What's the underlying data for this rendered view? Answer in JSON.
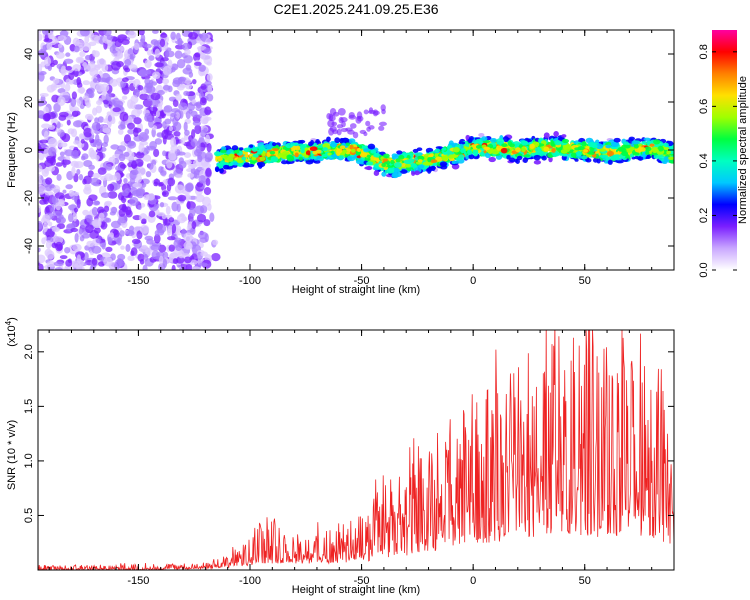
{
  "title": "C2E1.2025.241.09.25.E36",
  "chart_data": [
    {
      "type": "heatmap",
      "xlabel": "Height of straight line (km)",
      "ylabel": "Frequency (Hz)",
      "xlim": [
        -195,
        90
      ],
      "ylim": [
        -50,
        50
      ],
      "xticks": [
        -150,
        -100,
        -50,
        0,
        50
      ],
      "xtick_labels": [
        "-150",
        "-100",
        "-50",
        "0",
        "50"
      ],
      "yticks": [
        -40,
        -20,
        0,
        20,
        40
      ],
      "ytick_labels": [
        "-40",
        "-20",
        "0",
        "20",
        "40"
      ],
      "noise_region_x": [
        -195,
        -118
      ],
      "signal_band": {
        "x": [
          -115,
          -105,
          -95,
          -85,
          -75,
          -65,
          -55,
          -48,
          -42,
          -36,
          -30,
          -20,
          -10,
          0,
          10,
          20,
          30,
          40,
          50,
          60,
          70,
          80,
          90
        ],
        "center_freq": [
          -4,
          -3,
          -2,
          -1,
          -1,
          0,
          0,
          -2,
          -5,
          -6,
          -5,
          -4,
          -2,
          1,
          1,
          0,
          1,
          1,
          0,
          -1,
          0,
          1,
          -2
        ],
        "halfwidth": [
          4,
          4,
          4,
          4,
          4,
          4,
          4,
          4,
          4,
          4,
          4,
          4,
          4,
          4,
          4,
          4,
          4,
          4,
          4,
          4,
          4,
          4,
          4
        ]
      },
      "colorbar": {
        "label": "Normalized spectral amplitude",
        "range": [
          0.0,
          0.88
        ],
        "ticks": [
          0.0,
          0.2,
          0.4,
          0.6,
          0.8
        ],
        "tick_labels": [
          "0.0",
          "0.2",
          "0.4",
          "0.6",
          "0.8"
        ],
        "colors": [
          "#ffffff",
          "#c9a6ff",
          "#7a1fff",
          "#0000ff",
          "#00c8ff",
          "#00ffc0",
          "#00ff40",
          "#a0ff00",
          "#ffe000",
          "#ff8000",
          "#ff0000",
          "#ff00a0"
        ]
      }
    },
    {
      "type": "line",
      "xlabel": "Height of straight line (km)",
      "ylabel": "SNR (10 * v/v)",
      "multiplier_label": "(x10",
      "multiplier_exp": "4",
      "multiplier_close": ")",
      "xlim": [
        -195,
        90
      ],
      "ylim": [
        0.0,
        2.2
      ],
      "xticks": [
        -150,
        -100,
        -50,
        0,
        50
      ],
      "xtick_labels": [
        "-150",
        "-100",
        "-50",
        "0",
        "50"
      ],
      "yticks": [
        0.5,
        1.0,
        1.5,
        2.0
      ],
      "ytick_labels": [
        "0.5",
        "1.0",
        "1.5",
        "2.0"
      ],
      "color": "#ee2222",
      "envelope": {
        "x": [
          -195,
          -150,
          -120,
          -110,
          -100,
          -95,
          -85,
          -75,
          -65,
          -55,
          -48,
          -40,
          -30,
          -20,
          -10,
          0,
          10,
          20,
          30,
          40,
          50,
          60,
          70,
          80,
          90
        ],
        "peak": [
          0.04,
          0.05,
          0.06,
          0.12,
          0.3,
          0.5,
          0.38,
          0.3,
          0.38,
          0.45,
          0.55,
          0.8,
          0.95,
          1.05,
          1.2,
          1.45,
          1.7,
          1.85,
          2.0,
          2.2,
          2.2,
          2.0,
          2.1,
          1.9,
          1.6
        ],
        "floor": [
          0.0,
          0.0,
          0.01,
          0.02,
          0.04,
          0.06,
          0.06,
          0.06,
          0.06,
          0.07,
          0.08,
          0.1,
          0.12,
          0.15,
          0.2,
          0.25,
          0.25,
          0.3,
          0.3,
          0.35,
          0.3,
          0.3,
          0.3,
          0.3,
          0.2
        ]
      }
    }
  ]
}
